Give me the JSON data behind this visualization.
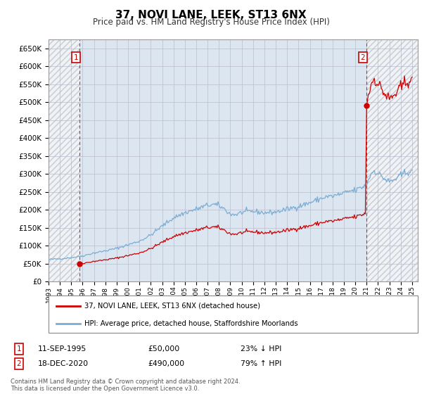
{
  "title": "37, NOVI LANE, LEEK, ST13 6NX",
  "subtitle": "Price paid vs. HM Land Registry's House Price Index (HPI)",
  "hpi_label": "HPI: Average price, detached house, Staffordshire Moorlands",
  "property_label": "37, NOVI LANE, LEEK, ST13 6NX (detached house)",
  "annotation1": {
    "num": "1",
    "date": "11-SEP-1995",
    "price": "£50,000",
    "pct": "23% ↓ HPI"
  },
  "annotation2": {
    "num": "2",
    "date": "18-DEC-2020",
    "price": "£490,000",
    "pct": "79% ↑ HPI"
  },
  "sale1_x": 1995.71,
  "sale1_y": 50000,
  "sale2_x": 2020.96,
  "sale2_y": 490000,
  "ylim_min": 0,
  "ylim_max": 675000,
  "xlim_min": 1993.0,
  "xlim_max": 2025.5,
  "property_color": "#cc0000",
  "hpi_color": "#7aadd4",
  "bg_color": "#dce6f0",
  "footnote": "Contains HM Land Registry data © Crown copyright and database right 2024.\nThis data is licensed under the Open Government Licence v3.0.",
  "xticks": [
    1993,
    1994,
    1995,
    1996,
    1997,
    1998,
    1999,
    2000,
    2001,
    2002,
    2003,
    2004,
    2005,
    2006,
    2007,
    2008,
    2009,
    2010,
    2011,
    2012,
    2013,
    2014,
    2015,
    2016,
    2017,
    2018,
    2019,
    2020,
    2021,
    2022,
    2023,
    2024,
    2025
  ],
  "yticks": [
    0,
    50000,
    100000,
    150000,
    200000,
    250000,
    300000,
    350000,
    400000,
    450000,
    500000,
    550000,
    600000,
    650000
  ]
}
